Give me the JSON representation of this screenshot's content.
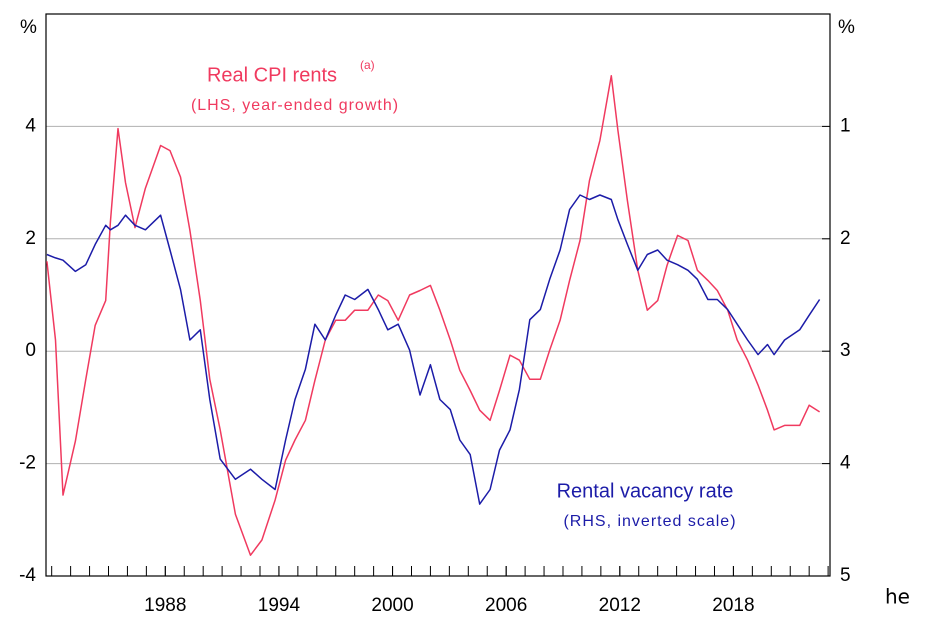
{
  "chart_data": {
    "type": "line",
    "y_unit": "%",
    "y2_unit": "%",
    "x": [
      1981.75,
      1982.2,
      1982.6,
      1983.25,
      1983.8,
      1984.3,
      1984.85,
      1985.1,
      1985.5,
      1985.9,
      1986.4,
      1986.95,
      1987.75,
      1988.25,
      1988.8,
      1989.3,
      1989.85,
      1990.35,
      1990.9,
      1991.7,
      1992.5,
      1993.1,
      1993.8,
      1994.35,
      1994.85,
      1995.4,
      1995.9,
      1996.45,
      1997,
      1997.5,
      1998,
      1998.7,
      1999.25,
      1999.75,
      2000.3,
      2000.9,
      2001.45,
      2002,
      2002.5,
      2003.05,
      2003.55,
      2004.1,
      2004.6,
      2005.15,
      2005.65,
      2006.2,
      2006.7,
      2007.25,
      2007.8,
      2008.3,
      2008.85,
      2009.35,
      2009.9,
      2010.4,
      2010.95,
      2011.55,
      2011.9,
      2012.4,
      2012.95,
      2013.45,
      2014,
      2014.5,
      2015.05,
      2015.6,
      2016.1,
      2016.65,
      2017.15,
      2017.7,
      2018.2,
      2018.75,
      2019.3,
      2019.8,
      2020.15,
      2020.7,
      2021.5,
      2022,
      2022.55
    ],
    "series": [
      {
        "name": "Real CPI rents",
        "superscript": "(a)",
        "note": "(LHS, year-ended growth)",
        "color": "#f03a5f",
        "axis": "y",
        "values": [
          1.6,
          0.2,
          -2.56,
          -1.6,
          -0.5,
          0.46,
          0.9,
          2.3,
          3.96,
          3.0,
          2.2,
          2.9,
          3.66,
          3.57,
          3.1,
          2.15,
          0.9,
          -0.5,
          -1.4,
          -2.9,
          -3.63,
          -3.36,
          -2.65,
          -1.94,
          -1.58,
          -1.23,
          -0.52,
          0.2,
          0.55,
          0.55,
          0.73,
          0.73,
          1.0,
          0.9,
          0.55,
          1.0,
          1.08,
          1.17,
          0.73,
          0.2,
          -0.34,
          -0.7,
          -1.05,
          -1.23,
          -0.7,
          -0.07,
          -0.16,
          -0.5,
          -0.5,
          0.02,
          0.55,
          1.26,
          1.97,
          3.04,
          3.75,
          4.9,
          3.93,
          2.68,
          1.44,
          0.73,
          0.9,
          1.53,
          2.06,
          1.97,
          1.44,
          1.26,
          1.08,
          0.73,
          0.2,
          -0.16,
          -0.6,
          -1.05,
          -1.4,
          -1.32,
          -1.32,
          -0.96,
          -1.08
        ]
      },
      {
        "name": "Rental vacancy rate",
        "note": "(RHS, inverted scale)",
        "color": "#1c1ca8",
        "axis": "y2",
        "values": [
          2.14,
          2.17,
          2.19,
          2.29,
          2.23,
          2.05,
          1.88,
          1.92,
          1.88,
          1.79,
          1.88,
          1.92,
          1.79,
          2.1,
          2.45,
          2.9,
          2.81,
          3.43,
          3.96,
          4.14,
          4.05,
          4.14,
          4.23,
          3.79,
          3.43,
          3.16,
          2.76,
          2.9,
          2.68,
          2.5,
          2.54,
          2.45,
          2.63,
          2.81,
          2.76,
          2.99,
          3.39,
          3.12,
          3.43,
          3.52,
          3.79,
          3.92,
          4.36,
          4.23,
          3.88,
          3.7,
          3.34,
          2.72,
          2.63,
          2.36,
          2.1,
          1.74,
          1.61,
          1.65,
          1.61,
          1.65,
          1.83,
          2.05,
          2.28,
          2.14,
          2.1,
          2.19,
          2.23,
          2.28,
          2.36,
          2.54,
          2.54,
          2.63,
          2.76,
          2.9,
          3.03,
          2.94,
          3.03,
          2.9,
          2.81,
          2.68,
          2.54
        ]
      }
    ],
    "xlim": [
      1981.7,
      2023.1
    ],
    "xticks": [
      1988,
      1994,
      2000,
      2006,
      2012,
      2018
    ],
    "ylim": [
      -4,
      6
    ],
    "yticks": [
      -4,
      -2,
      0,
      2,
      4
    ],
    "y2lim": [
      5,
      0
    ],
    "y2ticks": [
      1,
      2,
      3,
      4,
      5
    ],
    "grid": true,
    "outside_text": "he"
  }
}
